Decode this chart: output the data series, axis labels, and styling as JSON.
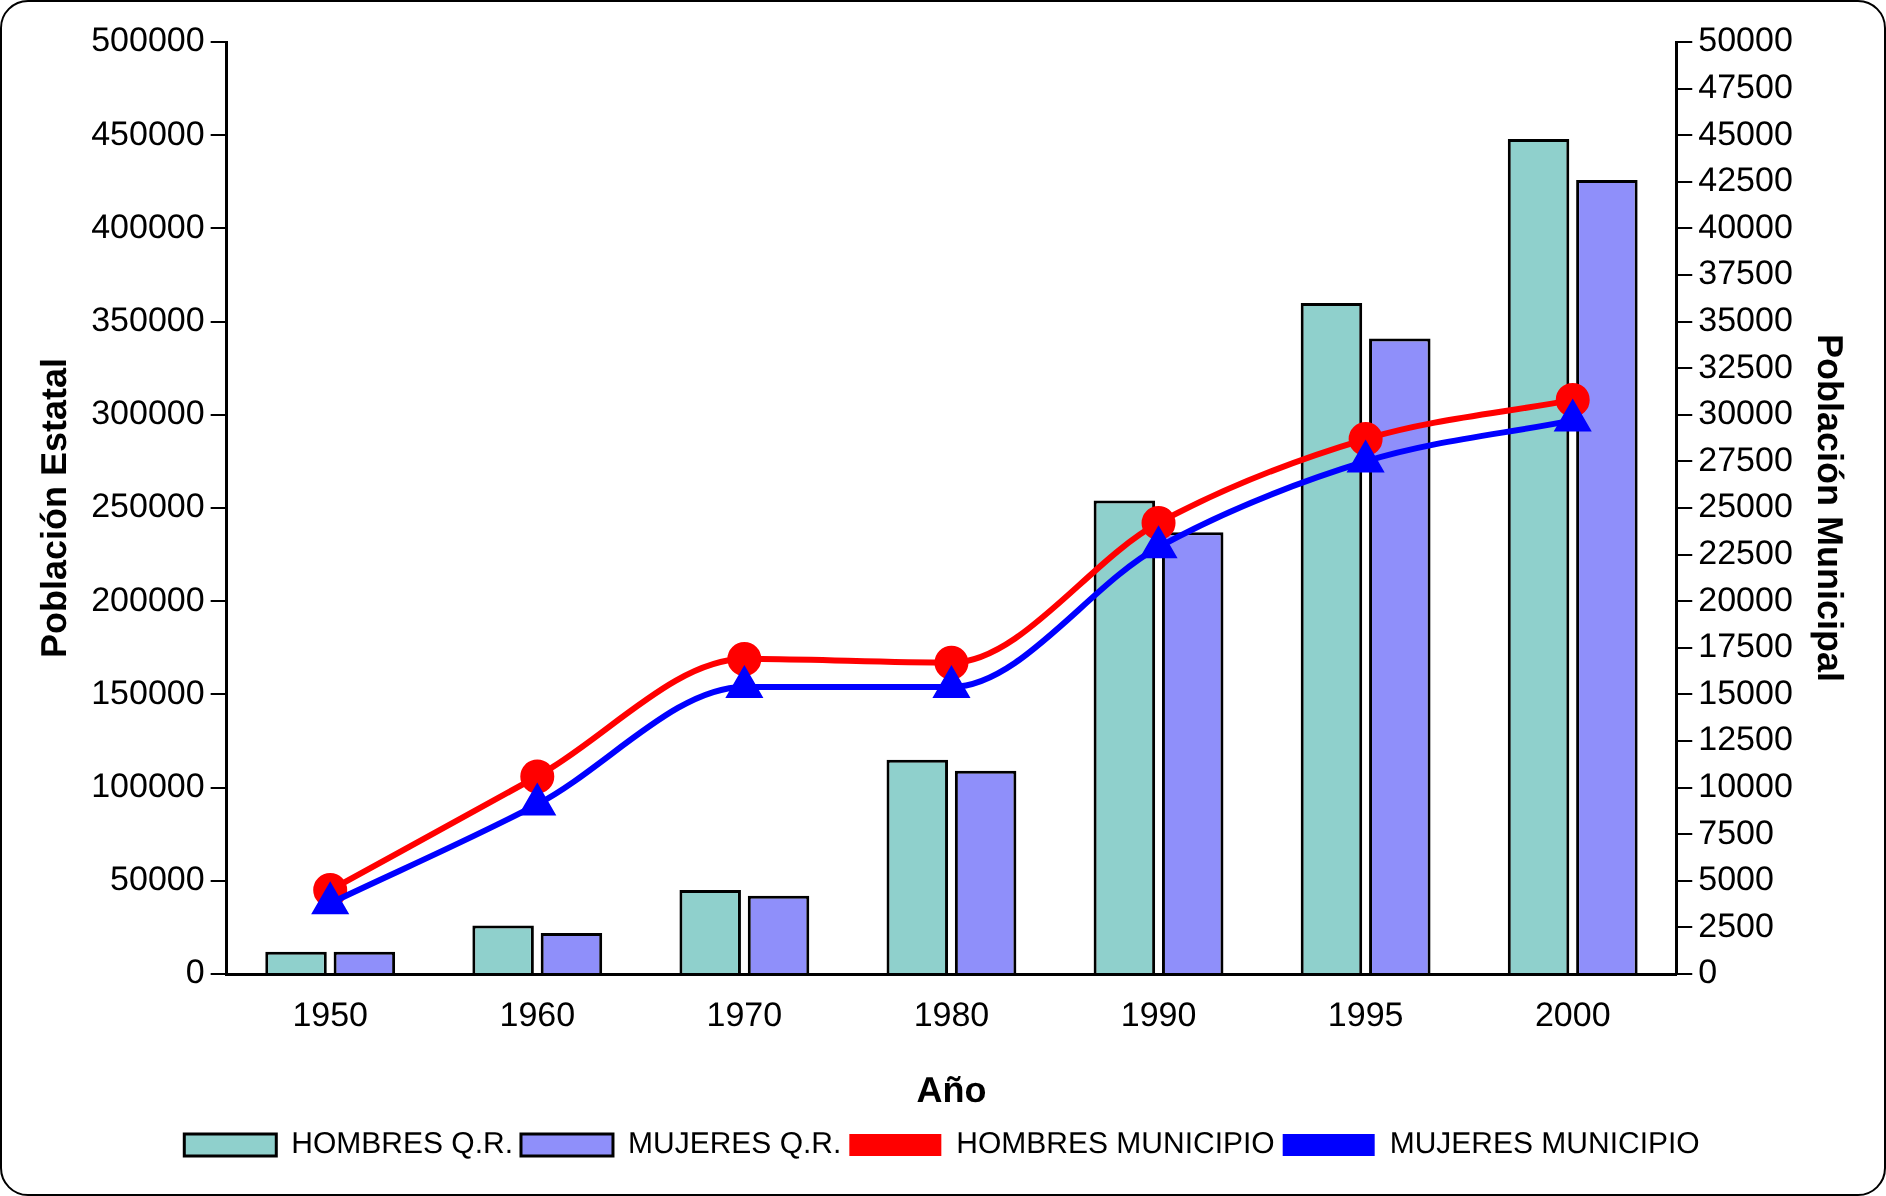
{
  "chart_data": {
    "type": "bar",
    "categories": [
      "1950",
      "1960",
      "1970",
      "1980",
      "1990",
      "1995",
      "2000"
    ],
    "xlabel": "Año",
    "ylabel": "Población Estatal",
    "y2label": "Población Municipal",
    "series": [
      {
        "name": "HOMBRES Q.R.",
        "color": "#8fd0cc",
        "values": [
          12000,
          26000,
          45000,
          115000,
          254000,
          360000,
          448000
        ]
      },
      {
        "name": "MUJERES Q.R.",
        "color": "#8f8ffa",
        "values": [
          12000,
          22000,
          42000,
          109000,
          237000,
          341000,
          426000
        ]
      },
      {
        "name": "HOMBRES MUNICIPIO",
        "type": "line",
        "axis": "y2",
        "color": "#ff0000",
        "marker": "circle",
        "values": [
          4500,
          10600,
          16900,
          16700,
          24200,
          28700,
          30800
        ]
      },
      {
        "name": "MUJERES MUNICIPIO",
        "type": "line",
        "axis": "y2",
        "color": "#0000ff",
        "marker": "triangle",
        "values": [
          3800,
          9100,
          15400,
          15400,
          22900,
          27500,
          29700
        ]
      }
    ],
    "ylim": [
      0,
      500000
    ],
    "yticks": [
      0,
      50000,
      100000,
      150000,
      200000,
      250000,
      300000,
      350000,
      400000,
      450000,
      500000
    ],
    "y2lim": [
      0,
      50000
    ],
    "y2ticks": [
      0,
      2500,
      5000,
      7500,
      10000,
      12500,
      15000,
      17500,
      20000,
      22500,
      25000,
      27500,
      30000,
      32500,
      35000,
      37500,
      40000,
      42500,
      45000,
      47500,
      50000
    ],
    "grid": false,
    "legend": "bottom"
  }
}
